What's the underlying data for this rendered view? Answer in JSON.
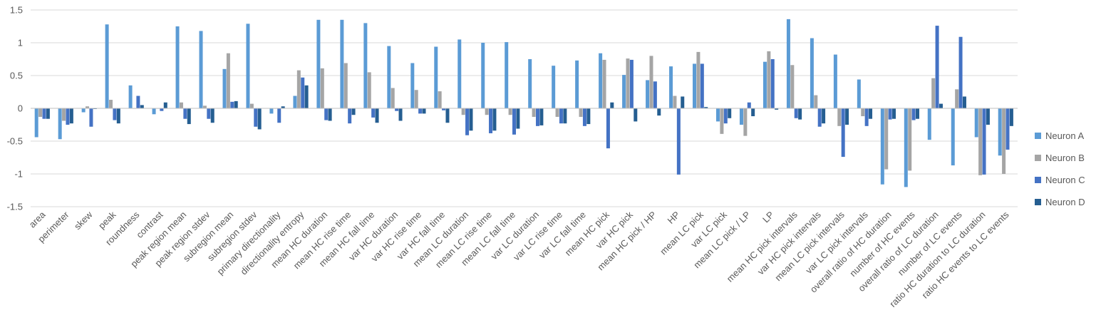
{
  "chart_data": {
    "type": "bar",
    "title": "",
    "xlabel": "",
    "ylabel": "",
    "ylim": [
      -1.5,
      1.5
    ],
    "yticks": [
      1.5,
      1,
      0.5,
      0,
      -0.5,
      -1,
      -1.5
    ],
    "ytick_labels": [
      "1.5",
      "1",
      "0.5",
      "0",
      "-0.5",
      "-1",
      "-1.5"
    ],
    "grid": "horizontal",
    "legend_position": "right",
    "categories": [
      "area",
      "perimeter",
      "skew",
      "peak",
      "roundness",
      "contrast",
      "peak region mean",
      "peak region stdev",
      "subregion mean",
      "subregion stdev",
      "primary directionality",
      "directionality entropy",
      "mean HC duration",
      "mean HC rise time",
      "mean HC fall time",
      "var HC duration",
      "var HC rise time",
      "var HC fall time",
      "mean LC duration",
      "mean LC rise time",
      "mean LC fall time",
      "var LC duration",
      "var LC rise time",
      "var LC fall time",
      "mean HC pick",
      "var HC pick",
      "mean HC pick / HP",
      "HP",
      "mean LC pick",
      "var LC pick",
      "mean LC pick / LP",
      "LP",
      "mean HC pick intervals",
      "var HC pick intervals",
      "mean LC pick intervals",
      "var LC pick intervals",
      "overall ratio of HC duration",
      "number of HC events",
      "overall ratio of LC duration",
      "number of LC events",
      "ratio HC duration to LC duration",
      "ratio HC events to LC events"
    ],
    "series": [
      {
        "name": "Neuron A",
        "color": "#5B9BD5",
        "values": [
          -0.44,
          -0.47,
          -0.06,
          1.28,
          0.35,
          -0.09,
          1.25,
          1.18,
          0.6,
          1.29,
          -0.08,
          0.19,
          1.35,
          1.35,
          1.3,
          0.95,
          0.69,
          0.94,
          1.05,
          1.0,
          1.01,
          0.75,
          0.65,
          0.73,
          0.84,
          0.51,
          0.43,
          0.64,
          0.68,
          -0.2,
          -0.25,
          0.71,
          1.36,
          1.07,
          0.82,
          0.44,
          -1.16,
          -1.2,
          -0.48,
          -0.87,
          -0.44,
          -0.72
        ]
      },
      {
        "name": "Neuron B",
        "color": "#A5A5A5",
        "values": [
          -0.13,
          -0.19,
          0.03,
          0.13,
          0.0,
          0.0,
          0.09,
          0.04,
          0.84,
          0.07,
          0.0,
          0.58,
          0.61,
          0.69,
          0.55,
          0.31,
          0.28,
          0.26,
          -0.1,
          -0.1,
          -0.1,
          -0.13,
          -0.13,
          -0.13,
          0.74,
          0.76,
          0.8,
          0.19,
          0.86,
          -0.39,
          -0.42,
          0.87,
          0.66,
          0.2,
          -0.27,
          -0.12,
          -0.93,
          -0.95,
          0.46,
          0.29,
          -1.02,
          -1.0
        ]
      },
      {
        "name": "Neuron C",
        "color": "#4472C4",
        "values": [
          -0.16,
          -0.25,
          -0.28,
          -0.18,
          0.19,
          -0.04,
          -0.16,
          -0.16,
          0.1,
          -0.28,
          -0.22,
          0.47,
          -0.18,
          -0.23,
          -0.14,
          -0.04,
          -0.08,
          -0.03,
          -0.41,
          -0.38,
          -0.4,
          -0.27,
          -0.23,
          -0.27,
          -0.61,
          0.74,
          0.41,
          -1.01,
          0.68,
          -0.23,
          0.09,
          0.75,
          -0.15,
          -0.28,
          -0.74,
          -0.27,
          -0.17,
          -0.18,
          1.26,
          1.09,
          -1.01,
          -0.63
        ]
      },
      {
        "name": "Neuron D",
        "color": "#255E91",
        "values": [
          -0.16,
          -0.23,
          -0.01,
          -0.23,
          0.05,
          0.09,
          -0.24,
          -0.22,
          0.11,
          -0.32,
          0.03,
          0.35,
          -0.19,
          -0.1,
          -0.22,
          -0.19,
          -0.08,
          -0.22,
          -0.34,
          -0.34,
          -0.31,
          -0.26,
          -0.23,
          -0.24,
          0.09,
          -0.2,
          -0.11,
          0.18,
          0.02,
          -0.15,
          -0.12,
          -0.02,
          -0.17,
          -0.23,
          -0.25,
          -0.16,
          -0.16,
          -0.16,
          0.07,
          0.18,
          -0.25,
          -0.27
        ]
      }
    ]
  }
}
